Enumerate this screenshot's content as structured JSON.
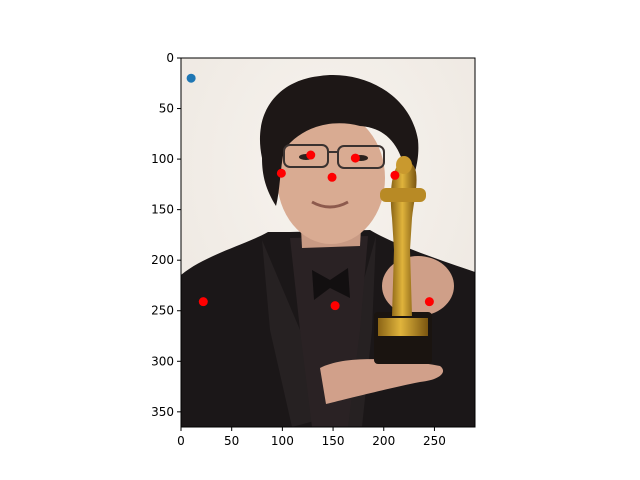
{
  "chart_data": {
    "type": "scatter",
    "title": "",
    "xlabel": "",
    "ylabel": "",
    "xlim": [
      0,
      290
    ],
    "ylim": [
      365,
      0
    ],
    "y_inverted": true,
    "grid": false,
    "background": "photograph of a man in a black tuxedo holding a golden award statuette",
    "x_ticks": [
      0,
      50,
      100,
      150,
      200,
      250
    ],
    "y_ticks": [
      0,
      50,
      100,
      150,
      200,
      250,
      300,
      350
    ],
    "series": [
      {
        "color": "#1f77b4",
        "points": [
          {
            "x": 10,
            "y": 20
          }
        ]
      },
      {
        "color": "#ff0000",
        "points": [
          {
            "x": 128,
            "y": 96
          },
          {
            "x": 172,
            "y": 99
          },
          {
            "x": 99,
            "y": 114
          },
          {
            "x": 149,
            "y": 118
          },
          {
            "x": 211,
            "y": 116
          },
          {
            "x": 22,
            "y": 241
          },
          {
            "x": 152,
            "y": 245
          },
          {
            "x": 245,
            "y": 241
          }
        ]
      }
    ]
  }
}
